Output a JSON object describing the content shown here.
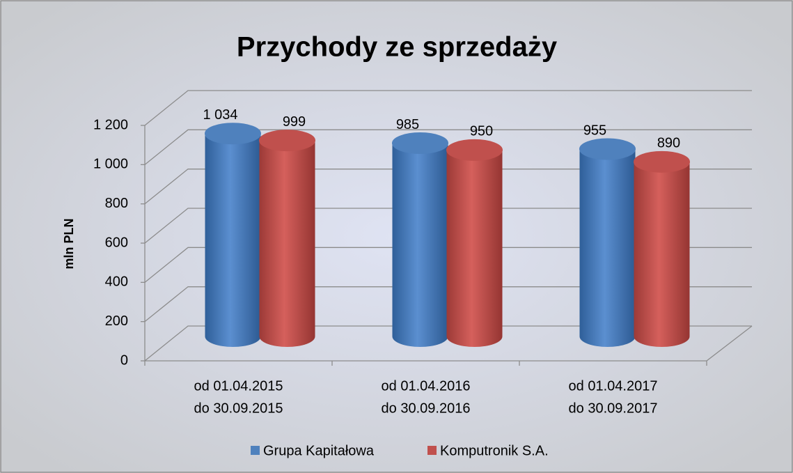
{
  "chart_data": {
    "type": "bar3d",
    "title": "Przychody ze sprzedaży",
    "y_label": "mln PLN",
    "categories": [
      [
        "od 01.04.2015",
        "do 30.09.2015"
      ],
      [
        "od 01.04.2016",
        "do 30.09.2016"
      ],
      [
        "od 01.04.2017",
        "do 30.09.2017"
      ]
    ],
    "series": [
      {
        "name": "Grupa Kapitałowa",
        "color": "#4f81bd",
        "values": [
          1034,
          985,
          955
        ],
        "value_labels": [
          "1 034",
          "985",
          "955"
        ]
      },
      {
        "name": "Komputronik S.A.",
        "color": "#c0504d",
        "values": [
          999,
          950,
          890
        ]
      }
    ],
    "ylim": [
      0,
      1200
    ],
    "yticks": [
      0,
      200,
      400,
      600,
      800,
      {
        "value": 1000,
        "label": "1 000"
      },
      {
        "value": 1200,
        "label": "1 200"
      }
    ],
    "grid": true,
    "legend": "bottom"
  }
}
